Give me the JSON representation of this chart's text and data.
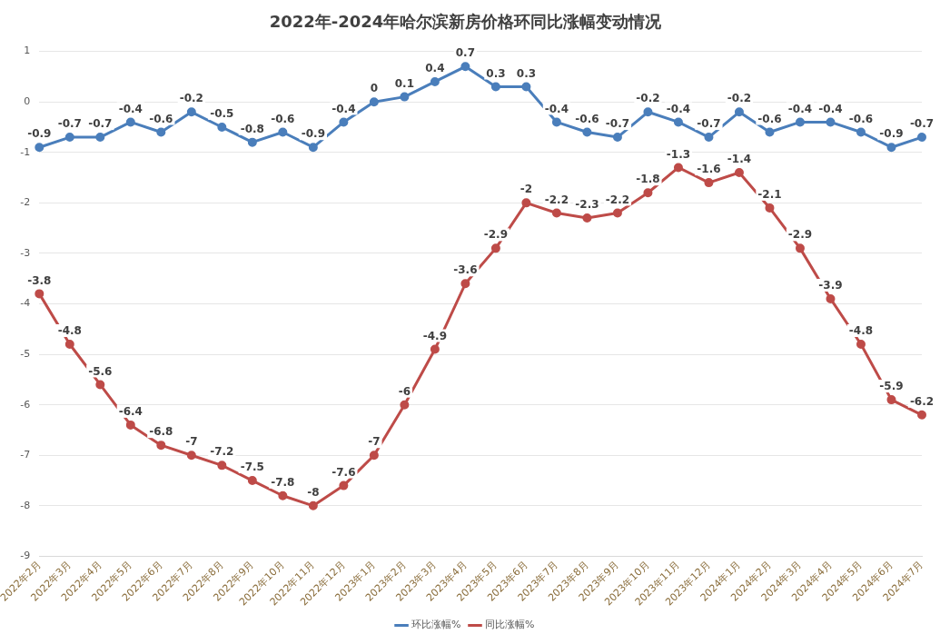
{
  "chart_data": {
    "type": "line",
    "title": "2022年-2024年哈尔滨新房价格环同比涨幅变动情况",
    "categories": [
      "2022年2月",
      "2022年3月",
      "2022年4月",
      "2022年5月",
      "2022年6月",
      "2022年7月",
      "2022年8月",
      "2022年9月",
      "2022年10月",
      "2022年11月",
      "2022年12月",
      "2023年1月",
      "2023年2月",
      "2023年3月",
      "2023年4月",
      "2023年5月",
      "2023年6月",
      "2023年7月",
      "2023年8月",
      "2023年9月",
      "2023年10月",
      "2023年11月",
      "2023年12月",
      "2024年1月",
      "2024年2月",
      "2024年3月",
      "2024年4月",
      "2024年5月",
      "2024年6月",
      "2024年7月"
    ],
    "series": [
      {
        "name": "环比涨幅%",
        "color": "#4a7ebb",
        "values": [
          -0.9,
          -0.7,
          -0.7,
          -0.4,
          -0.6,
          -0.2,
          -0.5,
          -0.8,
          -0.6,
          -0.9,
          -0.4,
          0,
          0.1,
          0.4,
          0.7,
          0.3,
          0.3,
          -0.4,
          -0.6,
          -0.7,
          -0.2,
          -0.4,
          -0.7,
          -0.2,
          -0.6,
          -0.4,
          -0.4,
          -0.6,
          -0.9,
          -0.7
        ]
      },
      {
        "name": "同比涨幅%",
        "color": "#be4b48",
        "values": [
          -3.8,
          -4.8,
          -5.6,
          -6.4,
          -6.8,
          -7,
          -7.2,
          -7.5,
          -7.8,
          -8,
          -7.6,
          -7,
          -6,
          -4.9,
          -3.6,
          -2.9,
          -2,
          -2.2,
          -2.3,
          -2.2,
          -1.8,
          -1.3,
          -1.6,
          -1.4,
          -2.1,
          -2.9,
          -3.9,
          -4.8,
          -5.9,
          -6.2
        ]
      }
    ],
    "ylim": [
      -9,
      1
    ],
    "yticks": [
      -9,
      -8,
      -7,
      -6,
      -5,
      -4,
      -3,
      -2,
      -1,
      0,
      1
    ],
    "grid": "y",
    "legend": "bottom",
    "marker": "circle",
    "line_style": "solid",
    "data_labels": true
  }
}
